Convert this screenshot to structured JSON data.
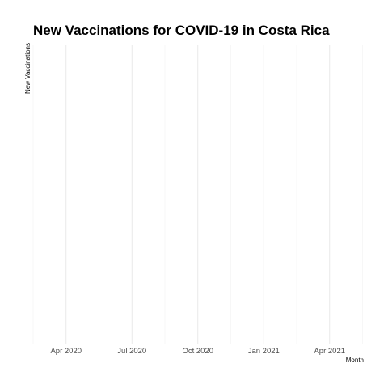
{
  "chart_data": {
    "type": "line",
    "title": "New Vaccinations for COVID-19 in Costa Rica",
    "xlabel": "Month",
    "ylabel": "New Vaccinations",
    "x_tick_labels": [
      "Apr 2020",
      "Jul 2020",
      "Oct 2020",
      "Jan 2021",
      "Apr 2021"
    ],
    "x_range": [
      "2020-01-15",
      "2021-06-15"
    ],
    "series": [
      {
        "x": [],
        "y": []
      }
    ],
    "grid": true,
    "y_ticks_shown": false,
    "legend": "none",
    "colors": {
      "grid_major": "#e6e6e6",
      "grid_minor": "#f2f2f2",
      "tick_text": "#4d4d4d",
      "text": "#000000"
    }
  }
}
